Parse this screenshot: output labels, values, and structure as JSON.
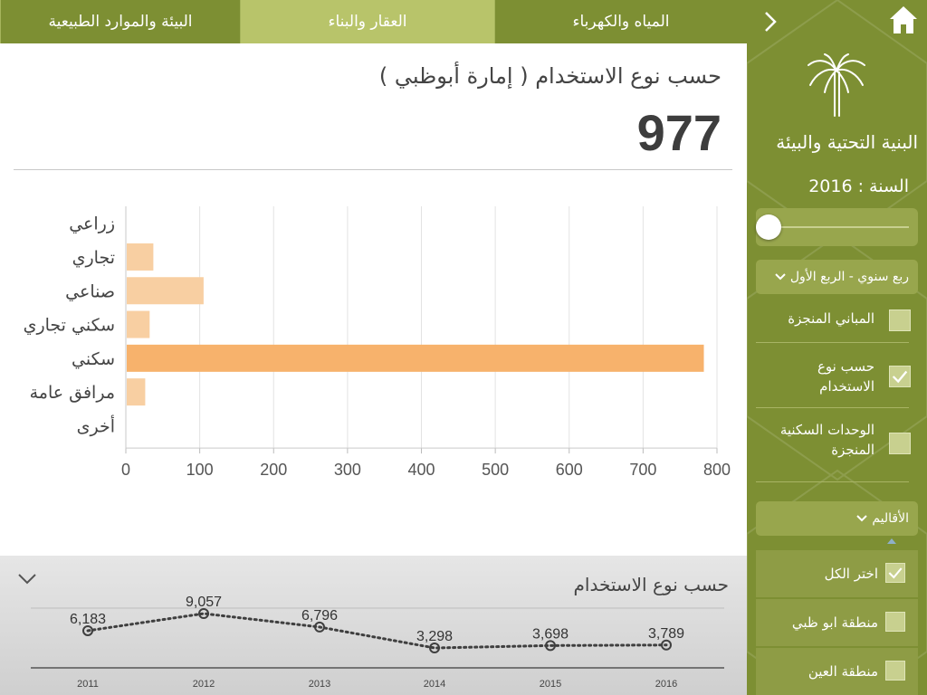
{
  "tabs": [
    {
      "label": "البيئة والموارد الطبيعية",
      "active": false
    },
    {
      "label": "العقار والبناء",
      "active": true
    },
    {
      "label": "المياه والكهرباء",
      "active": false
    }
  ],
  "main": {
    "title": "حسب نوع الاستخدام ( إمارة أبوظبي )",
    "total": "977"
  },
  "chart_data": [
    {
      "type": "bar",
      "orientation": "horizontal",
      "categories": [
        "زراعي",
        "تجاري",
        "صناعي",
        "سكني تجاري",
        "سكني",
        "مرافق عامة",
        "أخرى"
      ],
      "values": [
        0,
        36,
        104,
        31,
        781,
        25,
        0
      ],
      "xlim": [
        0,
        800
      ],
      "xticks": [
        "0",
        "100",
        "200",
        "300",
        "400",
        "500",
        "600",
        "700",
        "800"
      ],
      "grid": true,
      "colors": [
        "#f8cfa2",
        "#f8cfa2",
        "#f8cfa2",
        "#f8cfa2",
        "#f7b26c",
        "#f8cfa2",
        "#f8cfa2"
      ]
    },
    {
      "type": "line",
      "title": "حسب نوع الاستخدام",
      "x": [
        "2011",
        "2012",
        "2013",
        "2014",
        "2015",
        "2016"
      ],
      "values": [
        6183,
        9057,
        6796,
        3298,
        3698,
        3789
      ],
      "labels": [
        "6,183",
        "9,057",
        "6,796",
        "3,298",
        "3,698",
        "3,789"
      ],
      "line_style": "dotted",
      "color": "#3f3f3f"
    }
  ],
  "sidebar": {
    "title": "البنية التحتية والبيئة",
    "year_label": "السنة : 2016",
    "slider_position": 0,
    "period_dropdown": "ربع سنوي - الربع الأول",
    "options": [
      {
        "label": "المباني المنجزة",
        "checked": false
      },
      {
        "label": "حسب نوع الاستخدام",
        "checked": true
      },
      {
        "label": "الوحدات السكنية المنجزة",
        "checked": false
      }
    ],
    "regions_dropdown": "الأقاليم",
    "regions": [
      {
        "label": "اختر الكل",
        "checked": true
      },
      {
        "label": "منطقة ابو ظبي",
        "checked": false
      },
      {
        "label": "منطقة العين",
        "checked": false
      }
    ]
  },
  "colors": {
    "brand_green": "#7d8f33",
    "active_tab": "#b8c46a",
    "bar_light": "#f8cfa2",
    "bar_highlight": "#f7b26c"
  }
}
